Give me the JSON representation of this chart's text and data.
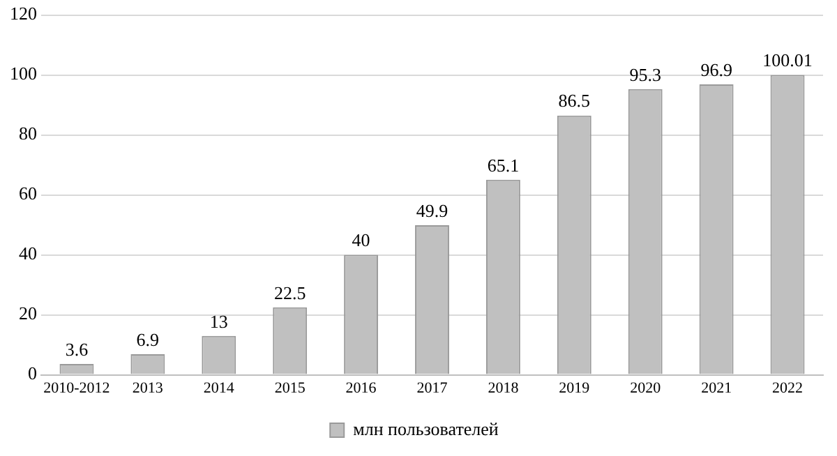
{
  "chart_data": {
    "type": "bar",
    "categories": [
      "2010-2012",
      "2013",
      "2014",
      "2015",
      "2016",
      "2017",
      "2018",
      "2019",
      "2020",
      "2021",
      "2022"
    ],
    "series": [
      {
        "name": "млн пользователей",
        "color": "#c0c0c0",
        "values": [
          3.6,
          6.9,
          13,
          22.5,
          40,
          49.9,
          65.1,
          86.5,
          95.3,
          96.9,
          100.01
        ]
      }
    ],
    "ylim": [
      0,
      120
    ],
    "yticks": [
      0,
      20,
      40,
      60,
      80,
      100,
      120
    ],
    "grid": "y",
    "legend": "bottom",
    "data_labels": true
  }
}
